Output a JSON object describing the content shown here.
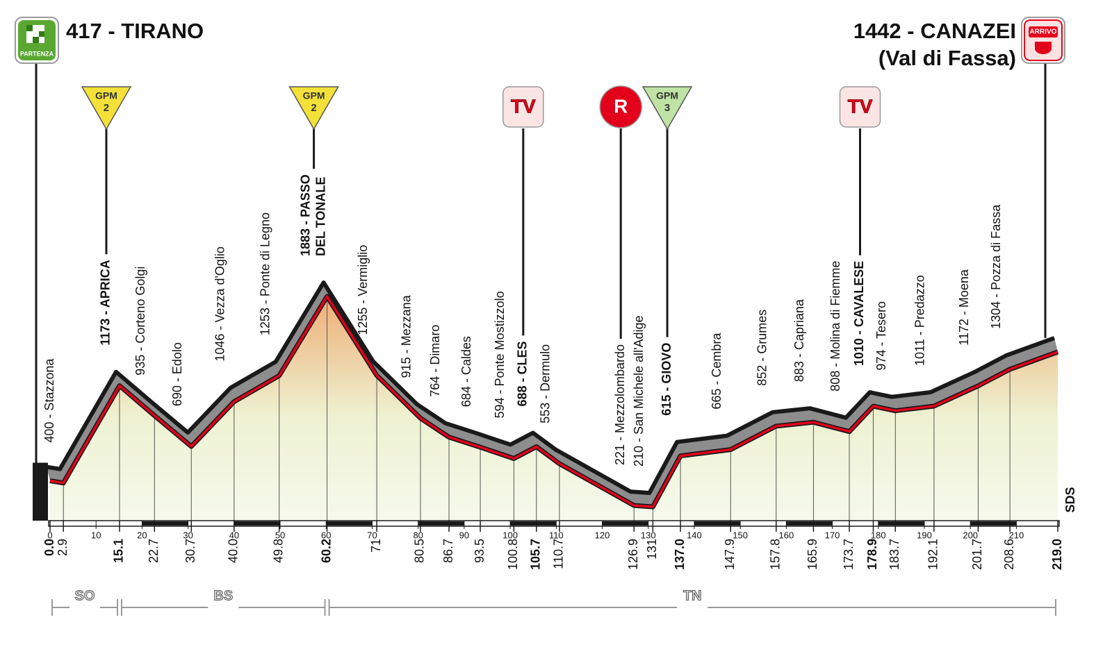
{
  "chart_data": {
    "type": "profile",
    "start": {
      "label": "417 - TIRANO",
      "badge": "PARTENZA"
    },
    "finish": {
      "label": "1442 - CANAZEI",
      "sublabel": "(Val di Fassa)",
      "badge": "ARRIVO"
    },
    "x": [
      {
        "value": 0,
        "label": "0.0"
      },
      2.9,
      15.1,
      22.7,
      30.7,
      {
        "value": 40,
        "label": "40.0"
      },
      49.8,
      60.2,
      71.0,
      80.5,
      86.7,
      93.5,
      100.8,
      105.7,
      110.7,
      126.9,
      131.0,
      {
        "value": 137,
        "label": "137.0"
      },
      147.9,
      157.8,
      165.9,
      173.7,
      178.9,
      183.7,
      192.1,
      201.7,
      208.6,
      {
        "value": 219,
        "label": "219.0"
      }
    ],
    "values": [
      417,
      400,
      1173,
      935,
      690,
      1046,
      1253,
      1883,
      1255,
      915,
      764,
      684,
      594,
      688,
      553,
      221,
      210,
      615,
      665,
      852,
      883,
      808,
      1010,
      974,
      1011,
      1172,
      1304,
      1442
    ],
    "labels": [
      null,
      "400 - Stazzona",
      "1173 - APRICA",
      "935 - Corteno Golgi",
      "690 - Edolo",
      "1046 - Vezza d'Oglio",
      "1253 - Ponte di Legno",
      [
        "1883 - PASSO",
        "DEL TONALE"
      ],
      "1255 - Vermiglio",
      "915 - Mezzana",
      "764 - Dimaro",
      "684 - Caldes",
      "594 - Ponte Mostizzolo",
      "688 - CLES",
      "553 - Dermulo",
      "221 - Mezzolombardo",
      "210 - San Michele all'Adige",
      "615 - GIOVO",
      "665 - Cembra",
      "852 - Grumes",
      "883 - Capriana",
      "808 - Molina di Fiemme",
      "1010 - CAVALESE",
      "974 - Tesero",
      "1011 - Predazzo",
      "1172 - Moena",
      "1304 - Pozza di Fassa",
      null
    ],
    "bold": [
      true,
      false,
      true,
      false,
      false,
      false,
      false,
      true,
      false,
      false,
      false,
      false,
      false,
      true,
      false,
      false,
      false,
      true,
      false,
      false,
      false,
      false,
      true,
      false,
      false,
      false,
      false,
      true
    ],
    "xlim": [
      0,
      219
    ],
    "xticks": [
      0,
      10,
      20,
      30,
      40,
      50,
      60,
      70,
      80,
      90,
      100,
      110,
      120,
      130,
      140,
      150,
      160,
      170,
      180,
      190,
      200,
      210
    ],
    "ylim": [
      100,
      2700
    ],
    "markers": [
      {
        "shape": "triangle",
        "label": "GPM",
        "category": 2,
        "km": 15.1,
        "color": "#f3e13a"
      },
      {
        "shape": "triangle",
        "label": "GPM",
        "category": 2,
        "km": 60.2,
        "color": "#f3e13a"
      },
      {
        "shape": "rounded-square",
        "label": "TV",
        "km": 105.7,
        "color": "#e3001b"
      },
      {
        "shape": "circle",
        "label": "R",
        "km": 126.9,
        "color": "#e3001b"
      },
      {
        "shape": "triangle",
        "label": "GPM",
        "category": 3,
        "km": 137.0,
        "color": "#bfe3a4"
      },
      {
        "shape": "rounded-square",
        "label": "TV",
        "km": 178.9,
        "color": "#e3001b"
      }
    ],
    "regions": [
      {
        "name": "SO",
        "from": 0,
        "to": 15.1
      },
      {
        "name": "BS",
        "from": 15.1,
        "to": 60.2
      },
      {
        "name": "TN",
        "from": 60.2,
        "to": 219
      }
    ],
    "note": "SDS"
  }
}
